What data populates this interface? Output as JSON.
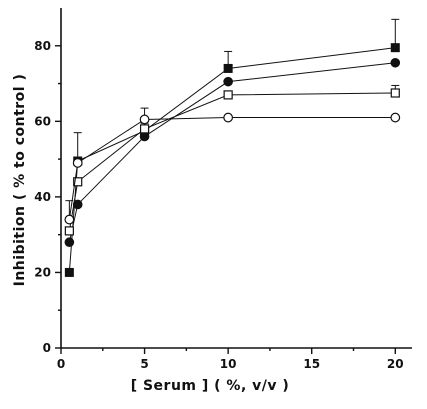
{
  "chart_data": {
    "type": "line",
    "xlabel": "[ Serum ] ( %, v/v )",
    "ylabel": "Inhibition ( % to control )",
    "xlim": [
      0,
      21
    ],
    "ylim": [
      0,
      90
    ],
    "x_ticks": [
      0,
      5,
      10,
      15,
      20
    ],
    "y_ticks": [
      0,
      20,
      40,
      60,
      80
    ],
    "grid": false,
    "legend": "none",
    "series": [
      {
        "marker": "filled-square",
        "x": [
          0.5,
          1,
          5,
          10,
          20
        ],
        "y": [
          20,
          49.5,
          57.5,
          74,
          79.5
        ],
        "error_upper": [
          0,
          7.5,
          2,
          4.5,
          7.5
        ]
      },
      {
        "marker": "filled-circle",
        "x": [
          0.5,
          1,
          5,
          10,
          20
        ],
        "y": [
          28,
          38,
          56,
          70.5,
          75.5
        ],
        "error_upper": [
          0,
          0,
          0,
          0,
          0
        ]
      },
      {
        "marker": "open-square",
        "x": [
          0.5,
          1,
          5,
          10,
          20
        ],
        "y": [
          31,
          44,
          58,
          67,
          67.5
        ],
        "error_upper": [
          0,
          0,
          0,
          0,
          2
        ]
      },
      {
        "marker": "open-circle",
        "x": [
          0.5,
          1,
          5,
          10,
          20
        ],
        "y": [
          34,
          49,
          60.5,
          61,
          61
        ],
        "error_upper": [
          5,
          0,
          3,
          0,
          0
        ]
      }
    ]
  }
}
